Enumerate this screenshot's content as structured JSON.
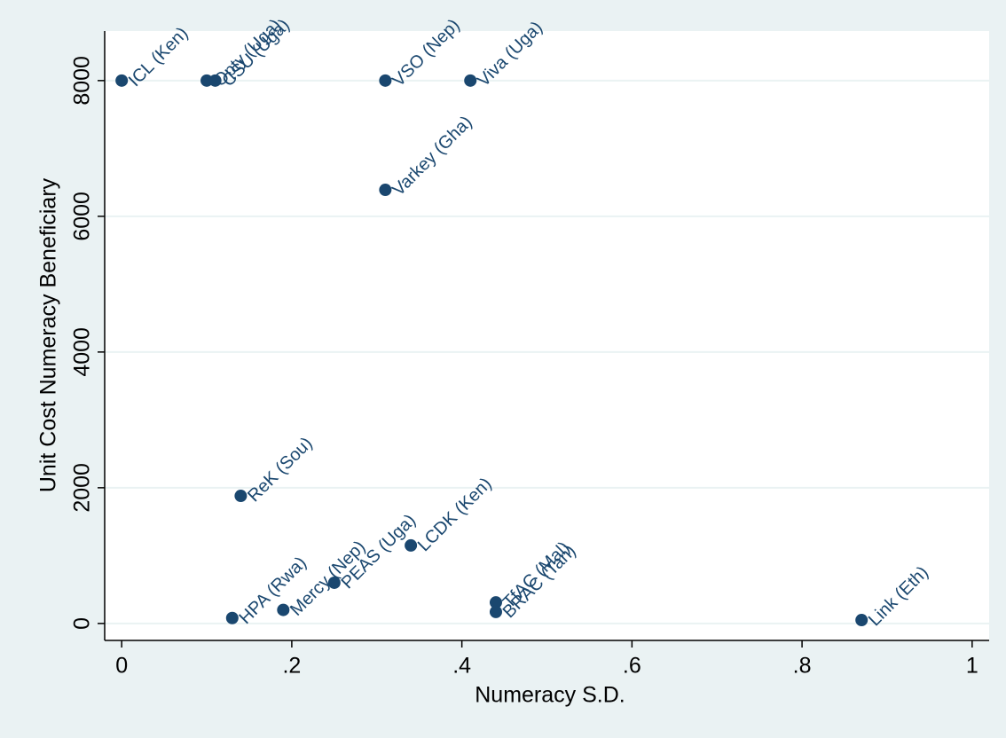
{
  "chart_data": {
    "type": "scatter",
    "x_label": "Numeracy S.D.",
    "y_label": "Unit Cost Numeracy Beneficiary",
    "point_labels": [
      "ICL (Ken)",
      "Opty (Uga)",
      "CSU (Uga)",
      "VSO (Nep)",
      "Viva (Uga)",
      "Varkey (Gha)",
      "ReK (Sou)",
      "LCDK (Ken)",
      "PEAS (Uga)",
      "Mercy (Nep)",
      "HPA (Rwa)",
      "TfAC (Mal)",
      "BRAC (Tan)",
      "Link (Eth)"
    ],
    "x": [
      0,
      0.1,
      0.11,
      0.31,
      0.41,
      0.31,
      0.14,
      0.34,
      0.25,
      0.19,
      0.13,
      0.44,
      0.44,
      0.87
    ],
    "values": [
      8000,
      8000,
      8000,
      8000,
      8000,
      6390,
      1880,
      1150,
      600,
      200,
      80,
      310,
      170,
      50
    ],
    "color": "#1a476f",
    "xlim": [
      -0.02,
      1.02
    ],
    "ylim": [
      -250,
      8730
    ],
    "xticks": [
      0,
      {
        "value": 0.2,
        "label": ".2"
      },
      {
        "value": 0.4,
        "label": ".4"
      },
      {
        "value": 0.6,
        "label": ".6"
      },
      {
        "value": 0.8,
        "label": ".8"
      },
      1
    ],
    "yticks": [
      0,
      2000,
      4000,
      6000,
      8000
    ],
    "grid": true
  }
}
